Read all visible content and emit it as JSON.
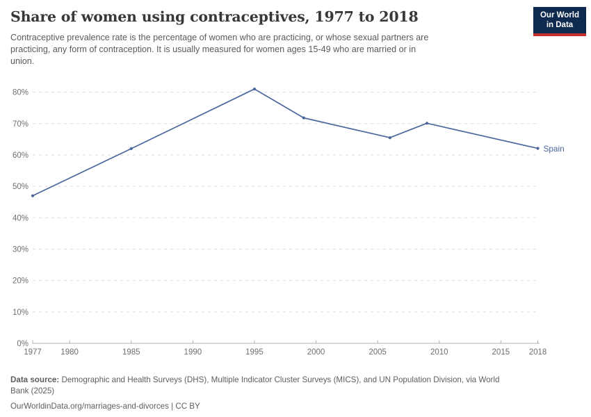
{
  "header": {
    "title": "Share of women using contraceptives, 1977 to 2018",
    "subtitle_lines": [
      "Contraceptive prevalence rate is the percentage of women who are practicing, or whose sexual partners are",
      "practicing, any form of contraception. It is usually measured for women ages 15-49 who are married or in",
      "union."
    ]
  },
  "logo": {
    "line1": "Our World",
    "line2": "in Data",
    "bg_color": "#0e2a4e",
    "bar_color": "#c5302b"
  },
  "chart_data": {
    "type": "line",
    "title": "Share of women using contraceptives, 1977 to 2018",
    "x": [
      1977,
      1985,
      1995,
      1999,
      2006,
      2009,
      2018
    ],
    "series": [
      {
        "name": "Spain",
        "color": "#4b679e",
        "values": [
          47,
          62,
          81,
          71.8,
          65.5,
          70.1,
          62.1
        ]
      }
    ],
    "x_ticks": [
      1977,
      1980,
      1985,
      1990,
      1995,
      2000,
      2005,
      2010,
      2015,
      2018
    ],
    "y_ticks": [
      0,
      10,
      20,
      30,
      40,
      50,
      60,
      70,
      80
    ],
    "y_tick_suffix": "%",
    "xlim": [
      1977,
      2018
    ],
    "ylim": [
      0,
      85
    ],
    "grid": "horizontal-dashed",
    "legend": "line-end-label",
    "axis_color": "#b0b0b0",
    "grid_color": "#dadada",
    "tick_label_color": "#6e6e6e"
  },
  "footer": {
    "source_label": "Data source:",
    "source_text": " Demographic and Health Surveys (DHS), Multiple Indicator Cluster Surveys (MICS), and UN Population Division, via World",
    "source_text_2": "Bank (2025)",
    "note": "OurWorldinData.org/marriages-and-divorces | CC BY"
  }
}
